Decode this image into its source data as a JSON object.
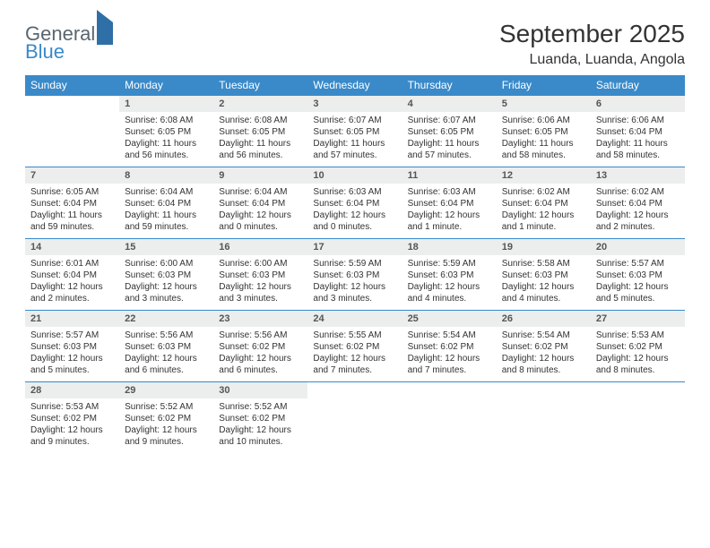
{
  "brand": {
    "word1": "General",
    "word2": "Blue"
  },
  "title": "September 2025",
  "subtitle": "Luanda, Luanda, Angola",
  "colors": {
    "header_bg": "#3a8ac9",
    "header_fg": "#ffffff",
    "daynum_bg": "#eceeee",
    "rule": "#3a8ac9",
    "text": "#333333",
    "logo_gray": "#5a6670",
    "logo_blue": "#3a8ac9"
  },
  "day_headers": [
    "Sunday",
    "Monday",
    "Tuesday",
    "Wednesday",
    "Thursday",
    "Friday",
    "Saturday"
  ],
  "weeks": [
    [
      {
        "n": "",
        "sr": "",
        "ss": "",
        "dl": ""
      },
      {
        "n": "1",
        "sr": "6:08 AM",
        "ss": "6:05 PM",
        "dl": "11 hours and 56 minutes."
      },
      {
        "n": "2",
        "sr": "6:08 AM",
        "ss": "6:05 PM",
        "dl": "11 hours and 56 minutes."
      },
      {
        "n": "3",
        "sr": "6:07 AM",
        "ss": "6:05 PM",
        "dl": "11 hours and 57 minutes."
      },
      {
        "n": "4",
        "sr": "6:07 AM",
        "ss": "6:05 PM",
        "dl": "11 hours and 57 minutes."
      },
      {
        "n": "5",
        "sr": "6:06 AM",
        "ss": "6:05 PM",
        "dl": "11 hours and 58 minutes."
      },
      {
        "n": "6",
        "sr": "6:06 AM",
        "ss": "6:04 PM",
        "dl": "11 hours and 58 minutes."
      }
    ],
    [
      {
        "n": "7",
        "sr": "6:05 AM",
        "ss": "6:04 PM",
        "dl": "11 hours and 59 minutes."
      },
      {
        "n": "8",
        "sr": "6:04 AM",
        "ss": "6:04 PM",
        "dl": "11 hours and 59 minutes."
      },
      {
        "n": "9",
        "sr": "6:04 AM",
        "ss": "6:04 PM",
        "dl": "12 hours and 0 minutes."
      },
      {
        "n": "10",
        "sr": "6:03 AM",
        "ss": "6:04 PM",
        "dl": "12 hours and 0 minutes."
      },
      {
        "n": "11",
        "sr": "6:03 AM",
        "ss": "6:04 PM",
        "dl": "12 hours and 1 minute."
      },
      {
        "n": "12",
        "sr": "6:02 AM",
        "ss": "6:04 PM",
        "dl": "12 hours and 1 minute."
      },
      {
        "n": "13",
        "sr": "6:02 AM",
        "ss": "6:04 PM",
        "dl": "12 hours and 2 minutes."
      }
    ],
    [
      {
        "n": "14",
        "sr": "6:01 AM",
        "ss": "6:04 PM",
        "dl": "12 hours and 2 minutes."
      },
      {
        "n": "15",
        "sr": "6:00 AM",
        "ss": "6:03 PM",
        "dl": "12 hours and 3 minutes."
      },
      {
        "n": "16",
        "sr": "6:00 AM",
        "ss": "6:03 PM",
        "dl": "12 hours and 3 minutes."
      },
      {
        "n": "17",
        "sr": "5:59 AM",
        "ss": "6:03 PM",
        "dl": "12 hours and 3 minutes."
      },
      {
        "n": "18",
        "sr": "5:59 AM",
        "ss": "6:03 PM",
        "dl": "12 hours and 4 minutes."
      },
      {
        "n": "19",
        "sr": "5:58 AM",
        "ss": "6:03 PM",
        "dl": "12 hours and 4 minutes."
      },
      {
        "n": "20",
        "sr": "5:57 AM",
        "ss": "6:03 PM",
        "dl": "12 hours and 5 minutes."
      }
    ],
    [
      {
        "n": "21",
        "sr": "5:57 AM",
        "ss": "6:03 PM",
        "dl": "12 hours and 5 minutes."
      },
      {
        "n": "22",
        "sr": "5:56 AM",
        "ss": "6:03 PM",
        "dl": "12 hours and 6 minutes."
      },
      {
        "n": "23",
        "sr": "5:56 AM",
        "ss": "6:02 PM",
        "dl": "12 hours and 6 minutes."
      },
      {
        "n": "24",
        "sr": "5:55 AM",
        "ss": "6:02 PM",
        "dl": "12 hours and 7 minutes."
      },
      {
        "n": "25",
        "sr": "5:54 AM",
        "ss": "6:02 PM",
        "dl": "12 hours and 7 minutes."
      },
      {
        "n": "26",
        "sr": "5:54 AM",
        "ss": "6:02 PM",
        "dl": "12 hours and 8 minutes."
      },
      {
        "n": "27",
        "sr": "5:53 AM",
        "ss": "6:02 PM",
        "dl": "12 hours and 8 minutes."
      }
    ],
    [
      {
        "n": "28",
        "sr": "5:53 AM",
        "ss": "6:02 PM",
        "dl": "12 hours and 9 minutes."
      },
      {
        "n": "29",
        "sr": "5:52 AM",
        "ss": "6:02 PM",
        "dl": "12 hours and 9 minutes."
      },
      {
        "n": "30",
        "sr": "5:52 AM",
        "ss": "6:02 PM",
        "dl": "12 hours and 10 minutes."
      },
      {
        "n": "",
        "sr": "",
        "ss": "",
        "dl": ""
      },
      {
        "n": "",
        "sr": "",
        "ss": "",
        "dl": ""
      },
      {
        "n": "",
        "sr": "",
        "ss": "",
        "dl": ""
      },
      {
        "n": "",
        "sr": "",
        "ss": "",
        "dl": ""
      }
    ]
  ],
  "labels": {
    "sunrise": "Sunrise: ",
    "sunset": "Sunset: ",
    "daylight": "Daylight: "
  }
}
